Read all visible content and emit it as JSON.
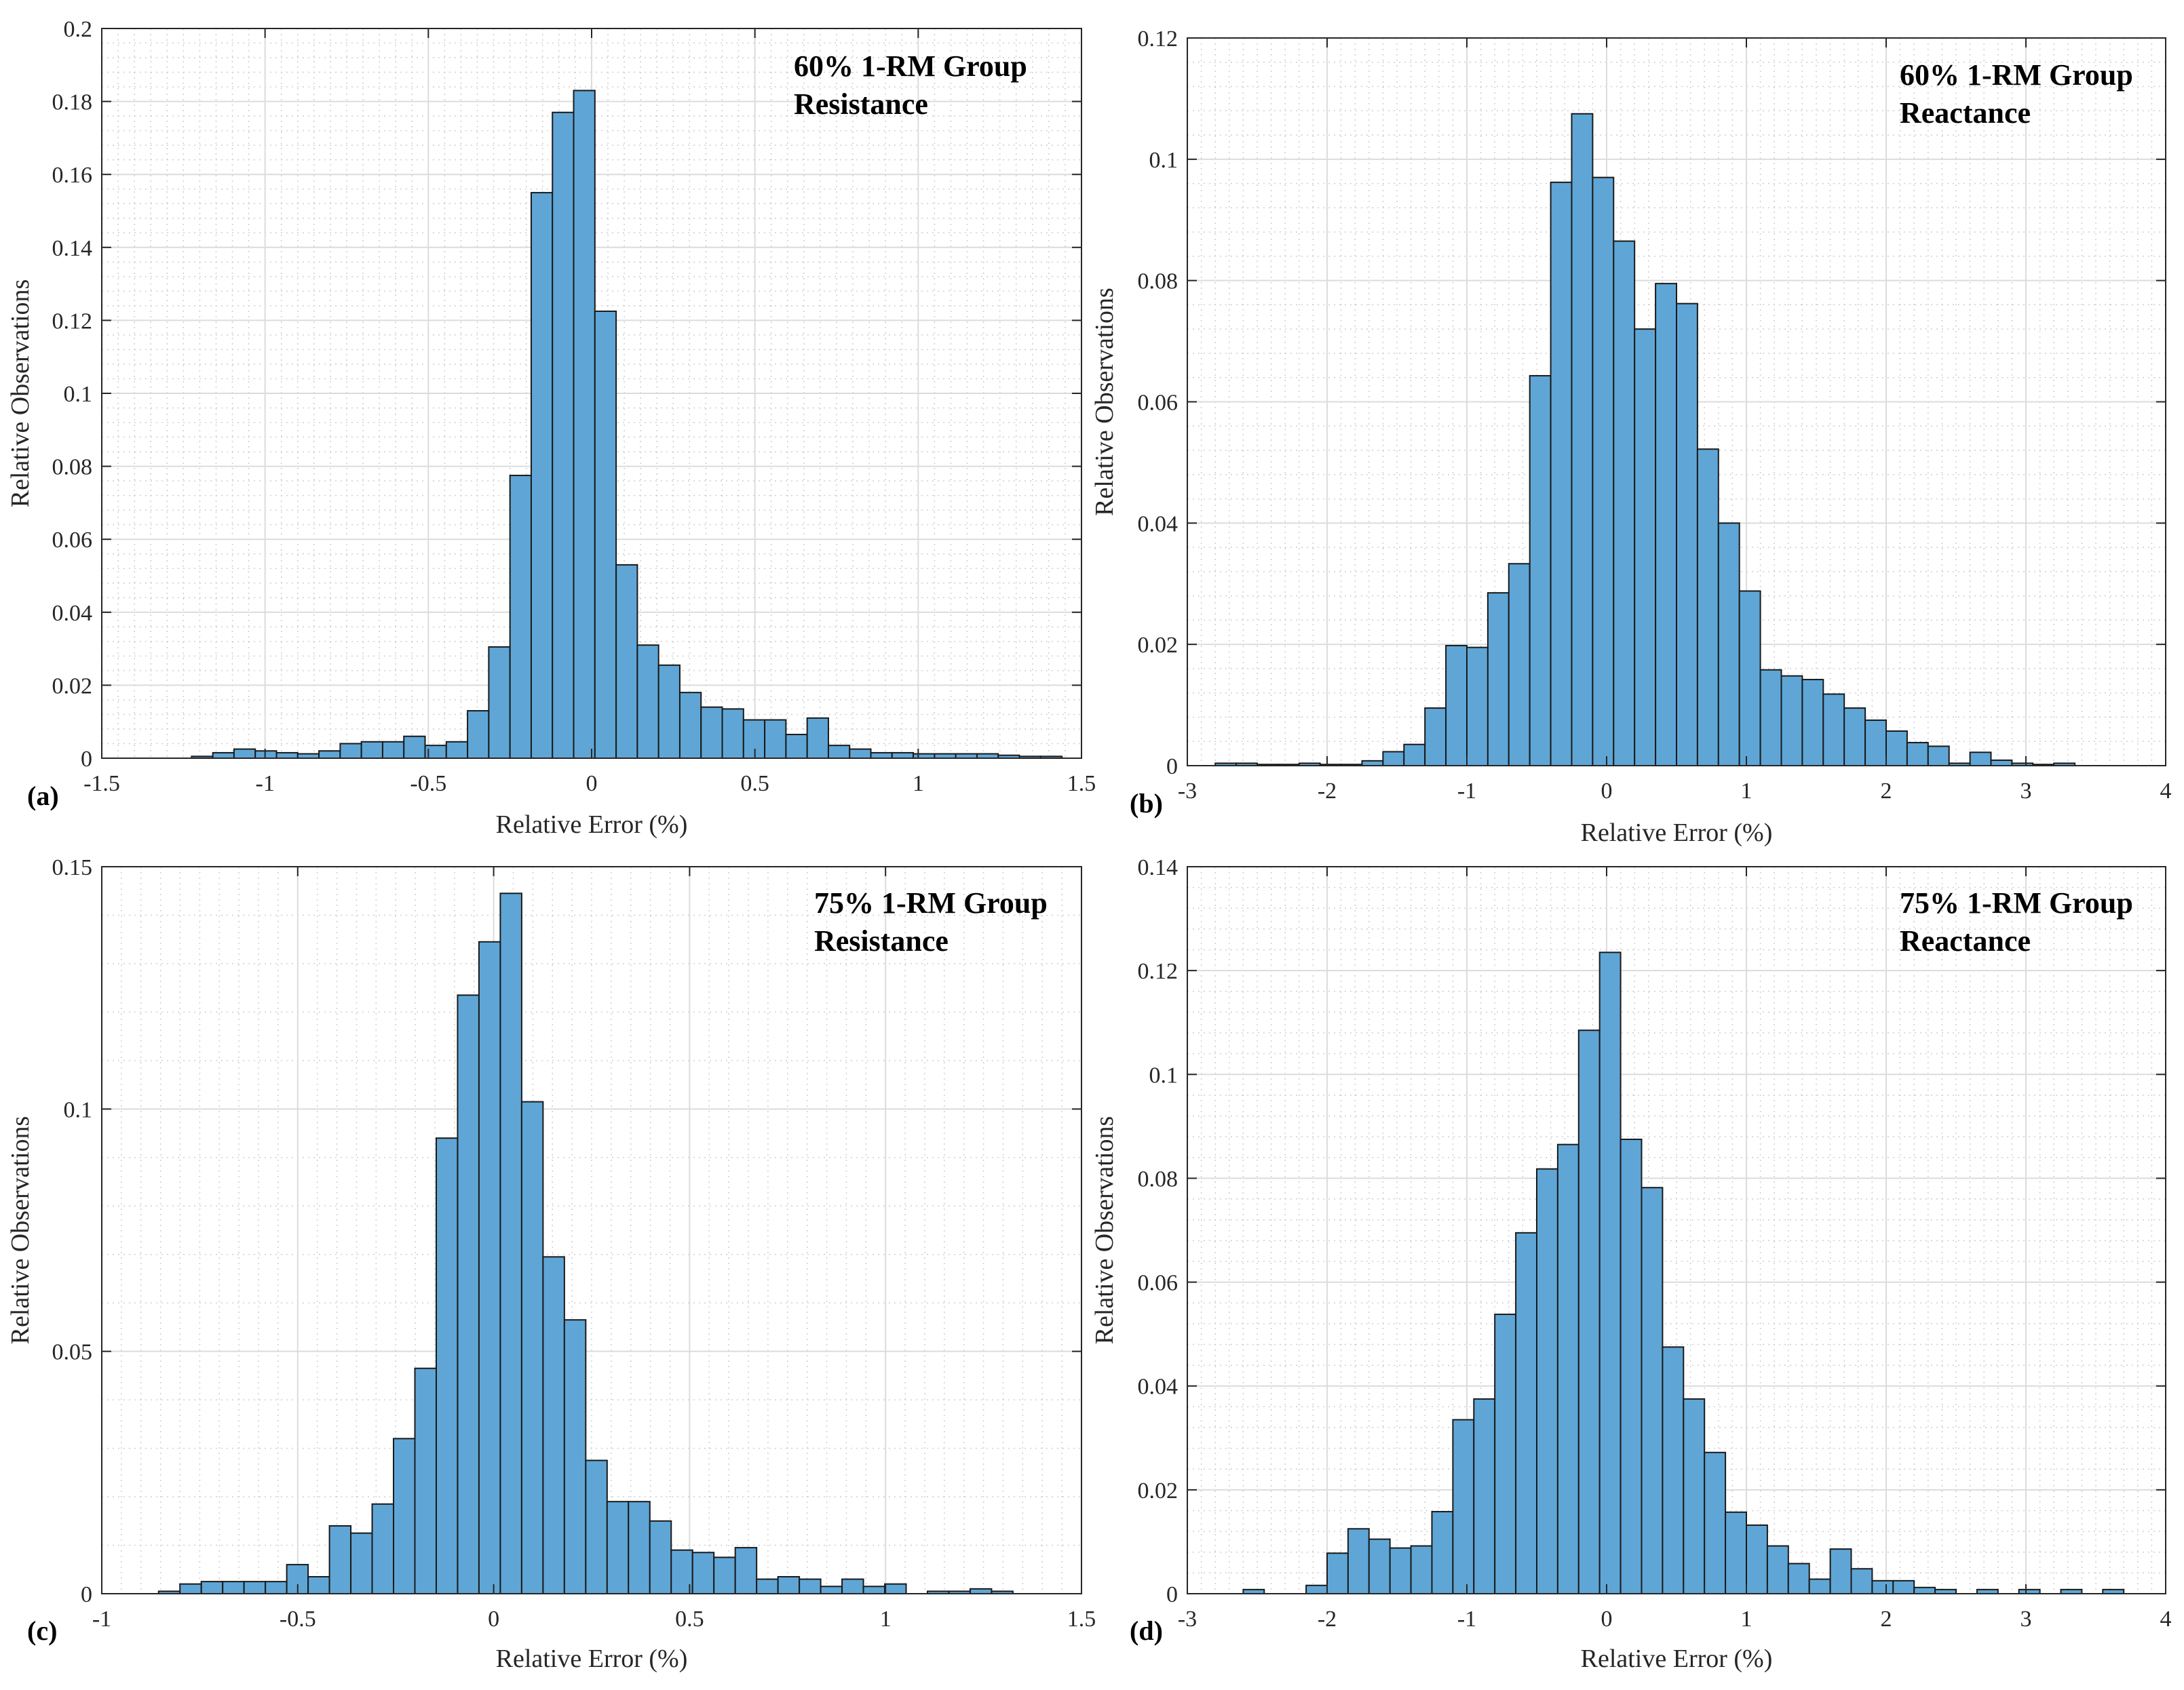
{
  "colors": {
    "bar_fill": "#5fa6d6",
    "bar_stroke": "#1a1a1a",
    "grid_major": "#dcdcdc",
    "grid_minor": "#cfcfcf",
    "axis": "#262626",
    "text": "#262626",
    "annotation": "#000000"
  },
  "chart_data": [
    {
      "panel": "(a)",
      "type": "bar",
      "title": "",
      "annotation": [
        "60% 1-RM Group",
        "Resistance"
      ],
      "xlabel": "Relative Error (%)",
      "ylabel": "Relative Observations",
      "xlim": [
        -1.5,
        1.5
      ],
      "ylim": [
        0,
        0.2
      ],
      "xticks": [
        -1.5,
        -1,
        -0.5,
        0,
        0.5,
        1,
        1.5
      ],
      "yticks": [
        0,
        0.02,
        0.04,
        0.06,
        0.08,
        0.1,
        0.12,
        0.14,
        0.16,
        0.18,
        0.2
      ],
      "xtick_labels": [
        "-1.5",
        "-1",
        "-0.5",
        "0",
        "0.5",
        "1",
        "1.5"
      ],
      "ytick_labels": [
        "0",
        "0.02",
        "0.04",
        "0.06",
        "0.08",
        "0.1",
        "0.12",
        "0.14",
        "0.16",
        "0.18",
        "0.2"
      ],
      "grid": true,
      "bin_edges_start": -1.225,
      "bin_width": 0.065,
      "values": [
        0.0005,
        0.0015,
        0.0025,
        0.002,
        0.0015,
        0.0012,
        0.002,
        0.004,
        0.0045,
        0.0045,
        0.006,
        0.0035,
        0.0045,
        0.013,
        0.0305,
        0.0775,
        0.155,
        0.177,
        0.183,
        0.1225,
        0.053,
        0.031,
        0.0255,
        0.018,
        0.014,
        0.0135,
        0.0105,
        0.0105,
        0.0065,
        0.011,
        0.0035,
        0.0025,
        0.0015,
        0.0015,
        0.0012,
        0.0012,
        0.0012,
        0.0012,
        0.0008,
        0.0005,
        0.0005
      ]
    },
    {
      "panel": "(b)",
      "type": "bar",
      "title": "",
      "annotation": [
        "60% 1-RM Group",
        "Reactance"
      ],
      "xlabel": "Relative Error (%)",
      "ylabel": "Relative Observations",
      "xlim": [
        -3,
        4
      ],
      "ylim": [
        0,
        0.12
      ],
      "xticks": [
        -3,
        -2,
        -1,
        0,
        1,
        2,
        3,
        4
      ],
      "yticks": [
        0,
        0.02,
        0.04,
        0.06,
        0.08,
        0.1,
        0.12
      ],
      "xtick_labels": [
        "-3",
        "-2",
        "-1",
        "0",
        "1",
        "2",
        "3",
        "4"
      ],
      "ytick_labels": [
        "0",
        "0.02",
        "0.04",
        "0.06",
        "0.08",
        "0.1",
        "0.12"
      ],
      "grid": true,
      "bin_edges_start": -2.8,
      "bin_width": 0.15,
      "values": [
        0.0004,
        0.0004,
        0.0002,
        0.0002,
        0.0004,
        0.0002,
        0.0002,
        0.0008,
        0.0023,
        0.0035,
        0.0095,
        0.0198,
        0.0195,
        0.0285,
        0.0333,
        0.0643,
        0.0962,
        0.1075,
        0.097,
        0.0865,
        0.072,
        0.0795,
        0.0762,
        0.0522,
        0.04,
        0.0288,
        0.0158,
        0.0148,
        0.0142,
        0.0118,
        0.0095,
        0.0075,
        0.0057,
        0.0038,
        0.0032,
        0.0004,
        0.0022,
        0.0009,
        0.0004,
        0.0002,
        0.0004
      ]
    },
    {
      "panel": "(c)",
      "type": "bar",
      "title": "",
      "annotation": [
        "75% 1-RM Group",
        "Resistance"
      ],
      "xlabel": "Relative Error (%)",
      "ylabel": "Relative Observations",
      "xlim": [
        -1,
        1.5
      ],
      "ylim": [
        0,
        0.15
      ],
      "xticks": [
        -1,
        -0.5,
        0,
        0.5,
        1,
        1.5
      ],
      "yticks": [
        0,
        0.05,
        0.1,
        0.15
      ],
      "xtick_labels": [
        "-1",
        "-0.5",
        "0",
        "0.5",
        "1",
        "1.5"
      ],
      "ytick_labels": [
        "0",
        "0.05",
        "0.1",
        "0.15"
      ],
      "grid": true,
      "bin_edges_start": -0.855,
      "bin_width": 0.0545,
      "values": [
        0.0005,
        0.002,
        0.0025,
        0.0025,
        0.0025,
        0.0025,
        0.006,
        0.0035,
        0.014,
        0.0125,
        0.0185,
        0.032,
        0.0465,
        0.094,
        0.1235,
        0.1345,
        0.1445,
        0.1015,
        0.0695,
        0.0565,
        0.0275,
        0.019,
        0.019,
        0.015,
        0.009,
        0.0085,
        0.0075,
        0.0095,
        0.003,
        0.0035,
        0.003,
        0.0015,
        0.003,
        0.0015,
        0.002,
        0.0,
        0.0005,
        0.0005,
        0.001,
        0.0005
      ]
    },
    {
      "panel": "(d)",
      "type": "bar",
      "title": "",
      "annotation": [
        "75% 1-RM Group",
        "Reactance"
      ],
      "xlabel": "Relative Error (%)",
      "ylabel": "Relative Observations",
      "xlim": [
        -3,
        4
      ],
      "ylim": [
        0,
        0.14
      ],
      "xticks": [
        -3,
        -2,
        -1,
        0,
        1,
        2,
        3,
        4
      ],
      "yticks": [
        0,
        0.02,
        0.04,
        0.06,
        0.08,
        0.1,
        0.12,
        0.14
      ],
      "xtick_labels": [
        "-3",
        "-2",
        "-1",
        "0",
        "1",
        "2",
        "3",
        "4"
      ],
      "ytick_labels": [
        "0",
        "0.02",
        "0.04",
        "0.06",
        "0.08",
        "0.1",
        "0.12",
        "0.14"
      ],
      "grid": true,
      "bin_edges_start": -2.6,
      "bin_width": 0.15,
      "values": [
        0.0008,
        0.0,
        0.0,
        0.0016,
        0.0078,
        0.0125,
        0.0105,
        0.0088,
        0.0092,
        0.0158,
        0.0335,
        0.0375,
        0.0538,
        0.0695,
        0.0818,
        0.0865,
        0.1085,
        0.1235,
        0.0875,
        0.0782,
        0.0475,
        0.0375,
        0.0272,
        0.0157,
        0.0132,
        0.0092,
        0.0058,
        0.0028,
        0.0086,
        0.0048,
        0.0025,
        0.0025,
        0.0012,
        0.0008,
        0.0,
        0.0008,
        0.0,
        0.0008,
        0.0,
        0.0008,
        0.0,
        0.0008
      ]
    }
  ]
}
